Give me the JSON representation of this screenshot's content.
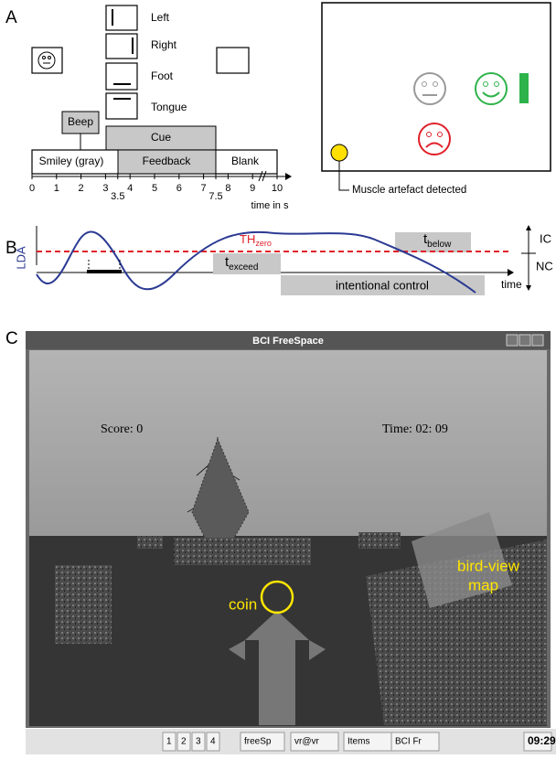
{
  "panel_a": {
    "label": "A",
    "cues": [
      "Left",
      "Right",
      "Foot",
      "Tongue"
    ],
    "beep": "Beep",
    "cue": "Cue",
    "smiley": "Smiley (gray)",
    "feedback": "Feedback",
    "blank": "Blank",
    "ticks": [
      0,
      1,
      2,
      3,
      4,
      5,
      6,
      7,
      8,
      9,
      10
    ],
    "extra_ticks": [
      3.5,
      7.5
    ],
    "axis_label": "time in s",
    "muscle_label": "Muscle artefact detected"
  },
  "panel_b": {
    "label": "B",
    "threshold": "TH",
    "threshold_sub": "zero",
    "y_label": "LDA",
    "exceed": "t",
    "exceed_sub": "exceed",
    "below": "t",
    "below_sub": "below",
    "control": "intentional control",
    "x_label": "time",
    "ic": "IC",
    "nc": "NC"
  },
  "panel_c": {
    "label": "C",
    "window_title": "BCI FreeSpace",
    "score": "Score: 0",
    "time": "Time: 02: 09",
    "coin": "coin",
    "map": [
      "bird-view",
      "map"
    ],
    "taskbar": [
      "1",
      "2",
      "3",
      "4",
      "freeSp",
      "vr@vr",
      "Items",
      "BCI Fr",
      "09:29"
    ]
  }
}
